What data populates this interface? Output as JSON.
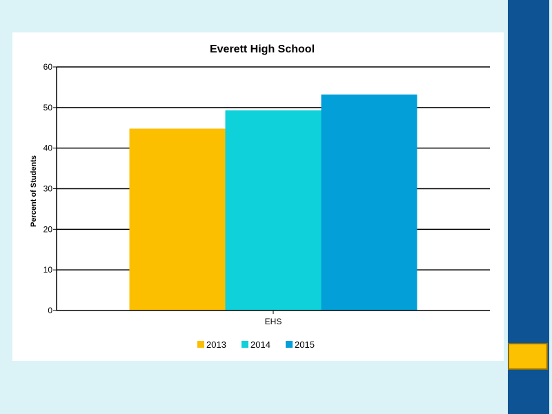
{
  "chart_data": {
    "type": "bar",
    "title": "Everett High School",
    "xlabel": "",
    "ylabel": "Percent of Students",
    "categories": [
      "EHS"
    ],
    "series": [
      {
        "name": "2013",
        "color": "#fcbf00",
        "values": [
          44.8
        ]
      },
      {
        "name": "2014",
        "color": "#0ed1d9",
        "values": [
          49.3
        ]
      },
      {
        "name": "2015",
        "color": "#029fd9",
        "values": [
          53.2
        ]
      }
    ],
    "ylim": [
      0,
      60
    ],
    "yticks": [
      "0",
      "10",
      "20",
      "30",
      "40",
      "50",
      "60"
    ],
    "grid": true,
    "legend_position": "bottom"
  },
  "theme": {
    "background": "#dbf3f7",
    "sidebar_color": "#0e5494",
    "sidebar_tab_color": "#fcc100"
  }
}
